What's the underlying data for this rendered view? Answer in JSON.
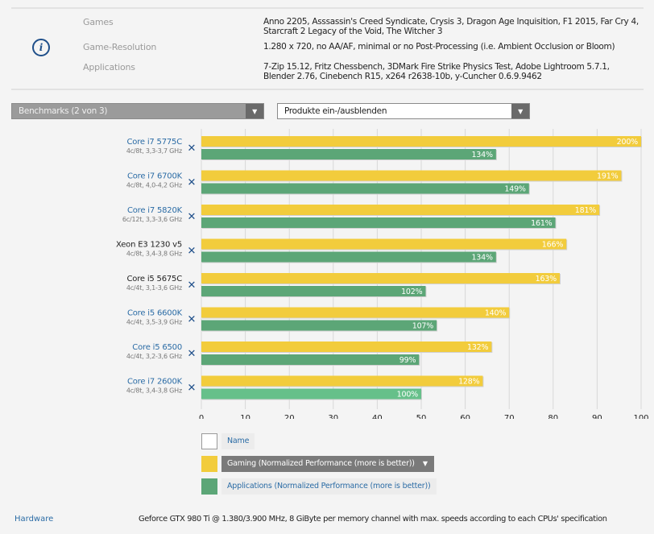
{
  "info": {
    "icon": "info-icon",
    "rows": [
      {
        "label": "Games",
        "value": "Anno 2205, Asssassin's Creed Syndicate, Crysis 3, Dragon Age Inquisition, F1 2015, Far Cry 4, Starcraft 2 Legacy of the Void, The Witcher 3"
      },
      {
        "label": "Game-Resolution",
        "value": "1.280 x 720, no AA/AF, minimal or no Post-Processing (i.e. Ambient Occlusion or Bloom)"
      },
      {
        "label": "Applications",
        "value": "7-Zip 15.12, Fritz Chessbench, 3DMark Fire Strike Physics Test, Adobe Lightroom 5.7.1, Blender 2.76, Cinebench R15, x264 r2638-10b, y-Cuncher 0.6.9.9462"
      }
    ]
  },
  "controls": {
    "benchmarks_dropdown": "Benchmarks (2 von 3)",
    "products_dropdown": "Produkte ein-/ausblenden",
    "arrow_icon": "chevron-down-icon"
  },
  "colors": {
    "gaming": "#f2cc3c",
    "applications": "#5ca677",
    "applications_highlight": "#66c08a",
    "link": "#2a6ba5",
    "remove_icon": "#1f4f8a"
  },
  "chart_data": {
    "type": "bar",
    "orientation": "horizontal",
    "categories": [
      {
        "name": "Core i7 5775C",
        "spec": "4c/8t, 3,3-3,7 GHz",
        "link": true
      },
      {
        "name": "Core i7 6700K",
        "spec": "4c/8t, 4,0-4,2 GHz",
        "link": true
      },
      {
        "name": "Core i7 5820K",
        "spec": "6c/12t, 3,3-3,6 GHz",
        "link": true
      },
      {
        "name": "Xeon E3 1230 v5",
        "spec": "4c/8t, 3,4-3,8 GHz",
        "link": false
      },
      {
        "name": "Core i5 5675C",
        "spec": "4c/4t, 3,1-3,6 GHz",
        "link": false
      },
      {
        "name": "Core i5 6600K",
        "spec": "4c/4t, 3,5-3,9 GHz",
        "link": true
      },
      {
        "name": "Core i5 6500",
        "spec": "4c/4t, 3,2-3,6 GHz",
        "link": true
      },
      {
        "name": "Core i7 2600K",
        "spec": "4c/8t, 3,4-3,8 GHz",
        "link": true
      }
    ],
    "series": [
      {
        "name": "Gaming (Normalized Performance (more is better))",
        "values": [
          200,
          191,
          181,
          166,
          163,
          140,
          132,
          128
        ],
        "unit": "%"
      },
      {
        "name": "Applications (Normalized Performance (more is better))",
        "values": [
          134,
          149,
          161,
          134,
          102,
          107,
          99,
          100
        ],
        "unit": "%"
      }
    ],
    "reference_index": 7,
    "axis_scale_note": "bar length = percent / 2 on 0-100 axis",
    "xlim": [
      0,
      100
    ],
    "xticks": [
      0,
      10,
      20,
      30,
      40,
      50,
      60,
      70,
      80,
      90,
      100
    ],
    "grid": true,
    "remove_icon": "close-icon",
    "legend": [
      {
        "label": "Name",
        "swatch": "empty"
      },
      {
        "label": "Gaming (Normalized Performance (more is better))",
        "swatch": "gaming",
        "active": true,
        "sort_icon": "▼"
      },
      {
        "label": "Applications (Normalized Performance (more is better))",
        "swatch": "applications"
      }
    ]
  },
  "footer": {
    "label": "Hardware",
    "value": "Geforce GTX 980 Ti @ 1.380/3.900 MHz, 8 GiByte per memory channel with max. speeds according to each CPUs' specification"
  }
}
